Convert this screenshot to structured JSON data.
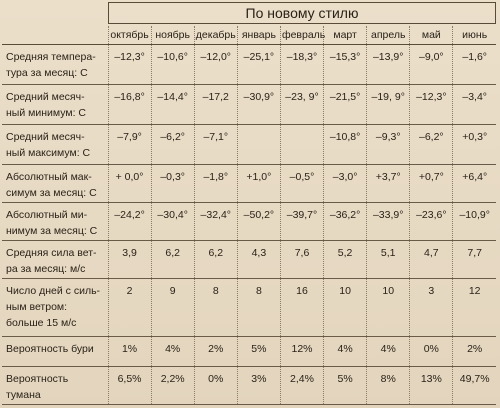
{
  "title": "По новому стилю",
  "columns": [
    "октябрь",
    "ноябрь",
    "декабрь",
    "январь",
    "февраль",
    "март",
    "апрель",
    "май",
    "июнь"
  ],
  "rows": [
    {
      "label": [
        "Средняя темпера-",
        "тура за месяц: С"
      ],
      "values": [
        "–12,3°",
        "–10,6°",
        "–12,0°",
        "–25,1°",
        "–18,3°",
        "–15,3°",
        "–13,9°",
        "–9,0°",
        "–1,6°"
      ]
    },
    {
      "label": [
        "Средний месяч-",
        "ный минимум: С"
      ],
      "values": [
        "–16,8°",
        "–14,4°",
        "–17,2",
        "–30,9°",
        "–23, 9°",
        "–21,5°",
        "–19, 9°",
        "–12,3°",
        "–3,4°"
      ]
    },
    {
      "label": [
        "Средний месяч-",
        "ный максимум: С"
      ],
      "values": [
        "–7,9°",
        "–6,2°",
        "–7,1°",
        null,
        null,
        "–10,8°",
        "–9,3°",
        "–6,2°",
        "+0,3°"
      ]
    },
    {
      "label": [
        "Абсолютный мак-",
        "симум за месяц: С"
      ],
      "values": [
        "+ 0,0°",
        "–0,3°",
        "–1,8°",
        "+1,0°",
        "–0,5°",
        "–3,0°",
        "+3,7°",
        "+0,7°",
        "+6,4°"
      ]
    },
    {
      "label": [
        "Абсолютный ми-",
        "нимум за месяц: С"
      ],
      "values": [
        "–24,2°",
        "–30,4°",
        "–32,4°",
        "–50,2°",
        "–39,7°",
        "–36,2°",
        "–33,9°",
        "–23,6°",
        "–10,9°"
      ]
    },
    {
      "label": [
        "Средняя сила вет-",
        "ра за месяц: м/с"
      ],
      "values": [
        "3,9",
        "6,2",
        "6,2",
        "4,3",
        "7,6",
        "5,2",
        "5,1",
        "4,7",
        "7,7"
      ]
    },
    {
      "label": [
        "Число дней с силь-",
        "ным ветром:",
        "больше 15 м/с"
      ],
      "values": [
        "2",
        "9",
        "8",
        "8",
        "16",
        "10",
        "10",
        "3",
        "12"
      ]
    },
    {
      "label": [
        "Вероятность бури"
      ],
      "values": [
        "1%",
        "4%",
        "2%",
        "5%",
        "12%",
        "4%",
        "4%",
        "0%",
        "2%"
      ]
    },
    {
      "label": [
        "Вероятность",
        "тумана"
      ],
      "values": [
        "6,5%",
        "2,2%",
        "0%",
        "3%",
        "2,4%",
        "5%",
        "8%",
        "13%",
        "49,7%"
      ]
    }
  ]
}
